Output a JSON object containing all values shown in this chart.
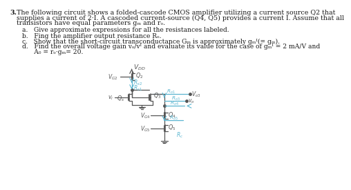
{
  "bg_color": "#ffffff",
  "text_color": "#1a1a1a",
  "circuit_color": "#555555",
  "highlight_color": "#5ab5d0",
  "fig_width": 4.74,
  "fig_height": 3.32,
  "main_text": [
    "3.  The following circuit shows a folded-cascode CMOS amplifier utilizing a current source Q2 that",
    "    supplies a current of 2·I. A cascoded current-source (Q4, Q5) provides a current I. Assume that all",
    "    transistors have equal parameters g_m and r_o."
  ],
  "items": [
    "a.   Give approximate expressions for all the resistances labeled.",
    "b.   Fing the amplifier output resistance R_o.",
    "c.   Show that the short-circuit transconductance G_m is approximately g_m1(= g_m).",
    "d.   Find the overall voltage gain v_o/v_i and evaluate its value for the case of g_m1 = 2 mA/V and",
    "      A_0 = r_o·g_m= 20."
  ]
}
